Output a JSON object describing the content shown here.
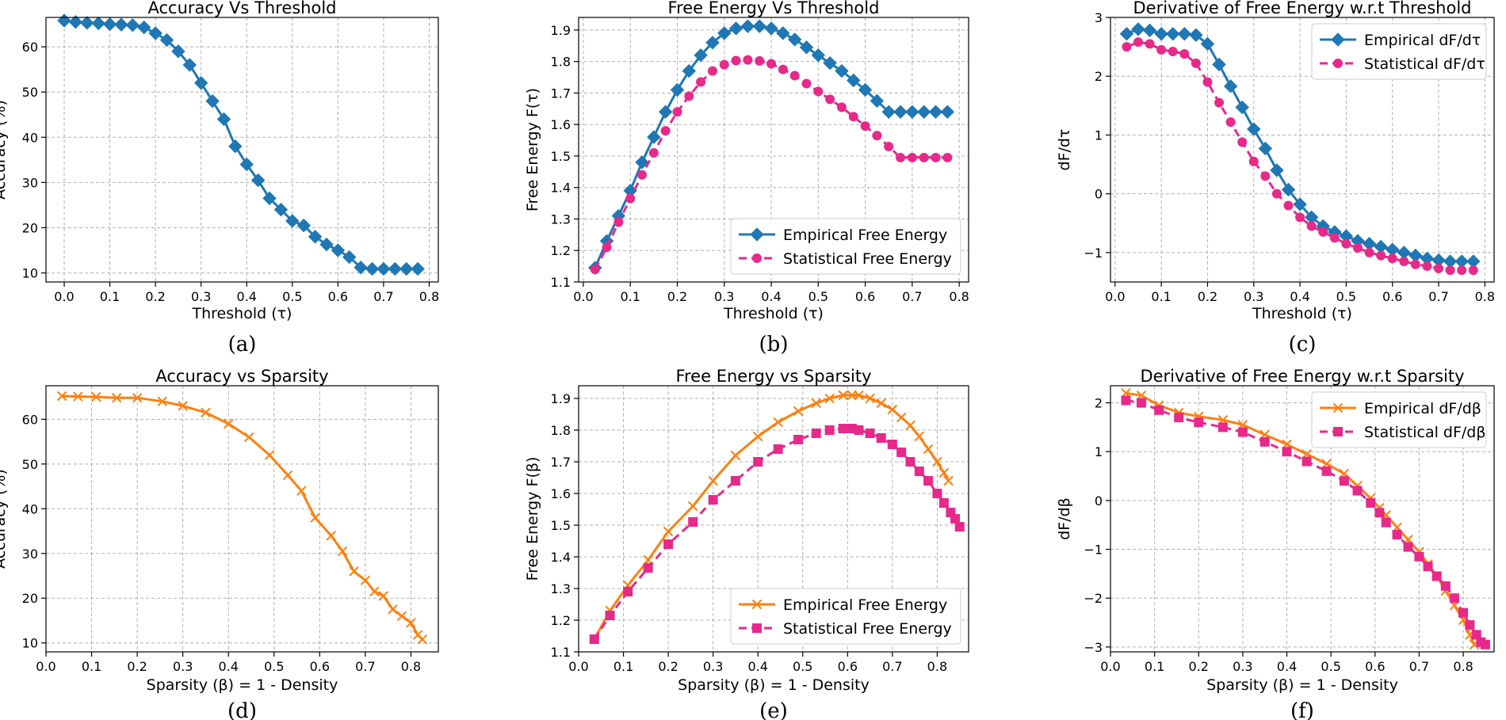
{
  "chart_data": [
    {
      "type": "line",
      "title": "Accuracy Vs Threshold",
      "xlabel": "Threshold (τ)",
      "ylabel": "Accuracy (%)",
      "caption": "(a)",
      "xlim": [
        -0.04,
        0.82
      ],
      "ylim": [
        8,
        66.5
      ],
      "xticks": [
        0.0,
        0.1,
        0.2,
        0.3,
        0.4,
        0.5,
        0.6,
        0.7,
        0.8
      ],
      "xtick_labels": [
        "0.0",
        "0.1",
        "0.2",
        "0.3",
        "0.4",
        "0.5",
        "0.6",
        "0.7",
        "0.8"
      ],
      "yticks": [
        10,
        20,
        30,
        40,
        50,
        60
      ],
      "ytick_labels": [
        "10",
        "20",
        "30",
        "40",
        "50",
        "60"
      ],
      "legend": null,
      "series": [
        {
          "name": "Accuracy",
          "color": "#1f77b4",
          "dash": "solid",
          "marker": "diamond",
          "x": [
            0.0,
            0.025,
            0.05,
            0.075,
            0.1,
            0.125,
            0.15,
            0.175,
            0.2,
            0.225,
            0.25,
            0.275,
            0.3,
            0.325,
            0.35,
            0.375,
            0.4,
            0.425,
            0.45,
            0.475,
            0.5,
            0.525,
            0.55,
            0.575,
            0.6,
            0.625,
            0.65,
            0.675,
            0.7,
            0.725,
            0.75,
            0.775
          ],
          "y": [
            65.8,
            65.5,
            65.3,
            65.2,
            65.0,
            64.9,
            64.8,
            64.3,
            63.0,
            61.5,
            59.0,
            56.0,
            52.0,
            48.0,
            44.0,
            38.0,
            34.0,
            30.5,
            26.5,
            24.0,
            21.5,
            20.5,
            18.0,
            16.3,
            15.0,
            13.5,
            11.2,
            10.9,
            10.9,
            10.9,
            10.9,
            10.9
          ]
        }
      ]
    },
    {
      "type": "line",
      "title": "Free Energy Vs Threshold",
      "xlabel": "Threshold (τ)",
      "ylabel": "Free Energy F(τ)",
      "caption": "(b)",
      "xlim": [
        -0.01,
        0.82
      ],
      "ylim": [
        1.1,
        1.94
      ],
      "xticks": [
        0.0,
        0.1,
        0.2,
        0.3,
        0.4,
        0.5,
        0.6,
        0.7,
        0.8
      ],
      "xtick_labels": [
        "0.0",
        "0.1",
        "0.2",
        "0.3",
        "0.4",
        "0.5",
        "0.6",
        "0.7",
        "0.8"
      ],
      "yticks": [
        1.1,
        1.2,
        1.3,
        1.4,
        1.5,
        1.6,
        1.7,
        1.8,
        1.9
      ],
      "ytick_labels": [
        "1.1",
        "1.2",
        "1.3",
        "1.4",
        "1.5",
        "1.6",
        "1.7",
        "1.8",
        "1.9"
      ],
      "legend": {
        "position": "lower-right"
      },
      "series": [
        {
          "name": "Empirical Free Energy",
          "color": "#1f77b4",
          "dash": "solid",
          "marker": "diamond",
          "x": [
            0.025,
            0.05,
            0.075,
            0.1,
            0.125,
            0.15,
            0.175,
            0.2,
            0.225,
            0.25,
            0.275,
            0.3,
            0.325,
            0.35,
            0.375,
            0.4,
            0.425,
            0.45,
            0.475,
            0.5,
            0.525,
            0.55,
            0.575,
            0.6,
            0.625,
            0.65,
            0.675,
            0.7,
            0.725,
            0.75,
            0.775
          ],
          "y": [
            1.145,
            1.23,
            1.31,
            1.39,
            1.48,
            1.56,
            1.64,
            1.71,
            1.77,
            1.82,
            1.86,
            1.89,
            1.905,
            1.912,
            1.912,
            1.905,
            1.89,
            1.87,
            1.845,
            1.82,
            1.795,
            1.77,
            1.74,
            1.71,
            1.675,
            1.64,
            1.64,
            1.64,
            1.64,
            1.64,
            1.64
          ]
        },
        {
          "name": "Statistical Free Energy",
          "color": "#e7298a",
          "dash": "dashed",
          "marker": "circle",
          "x": [
            0.025,
            0.05,
            0.075,
            0.1,
            0.125,
            0.15,
            0.175,
            0.2,
            0.225,
            0.25,
            0.275,
            0.3,
            0.325,
            0.35,
            0.375,
            0.4,
            0.425,
            0.45,
            0.475,
            0.5,
            0.525,
            0.55,
            0.575,
            0.6,
            0.625,
            0.65,
            0.675,
            0.7,
            0.725,
            0.75,
            0.775
          ],
          "y": [
            1.14,
            1.21,
            1.29,
            1.365,
            1.44,
            1.51,
            1.58,
            1.64,
            1.69,
            1.735,
            1.77,
            1.79,
            1.803,
            1.805,
            1.802,
            1.793,
            1.775,
            1.755,
            1.73,
            1.705,
            1.68,
            1.655,
            1.625,
            1.595,
            1.565,
            1.53,
            1.495,
            1.495,
            1.495,
            1.495,
            1.495
          ]
        }
      ]
    },
    {
      "type": "line",
      "title": "Derivative of Free Energy w.r.t Threshold",
      "xlabel": "Threshold (τ)",
      "ylabel": "dF/dτ",
      "caption": "(c)",
      "xlim": [
        -0.01,
        0.82
      ],
      "ylim": [
        -1.5,
        3.0
      ],
      "xticks": [
        0.0,
        0.1,
        0.2,
        0.3,
        0.4,
        0.5,
        0.6,
        0.7,
        0.8
      ],
      "xtick_labels": [
        "0.0",
        "0.1",
        "0.2",
        "0.3",
        "0.4",
        "0.5",
        "0.6",
        "0.7",
        "0.8"
      ],
      "yticks": [
        -1,
        0,
        1,
        2,
        3
      ],
      "ytick_labels": [
        "−1",
        "0",
        "1",
        "2",
        "3"
      ],
      "legend": {
        "position": "upper-right"
      },
      "series": [
        {
          "name": "Empirical dF/dτ",
          "color": "#1f77b4",
          "dash": "solid",
          "marker": "diamond",
          "x": [
            0.025,
            0.05,
            0.075,
            0.1,
            0.125,
            0.15,
            0.175,
            0.2,
            0.225,
            0.25,
            0.275,
            0.3,
            0.325,
            0.35,
            0.375,
            0.4,
            0.425,
            0.45,
            0.475,
            0.5,
            0.525,
            0.55,
            0.575,
            0.6,
            0.625,
            0.65,
            0.675,
            0.7,
            0.725,
            0.75,
            0.775
          ],
          "y": [
            2.72,
            2.8,
            2.78,
            2.72,
            2.72,
            2.72,
            2.7,
            2.55,
            2.2,
            1.83,
            1.47,
            1.1,
            0.77,
            0.4,
            0.07,
            -0.18,
            -0.4,
            -0.55,
            -0.65,
            -0.72,
            -0.8,
            -0.85,
            -0.9,
            -0.95,
            -1.0,
            -1.05,
            -1.1,
            -1.13,
            -1.15,
            -1.15,
            -1.15
          ]
        },
        {
          "name": "Statistical dF/dτ",
          "color": "#e7298a",
          "dash": "dashed",
          "marker": "circle",
          "x": [
            0.025,
            0.05,
            0.075,
            0.1,
            0.125,
            0.15,
            0.175,
            0.2,
            0.225,
            0.25,
            0.275,
            0.3,
            0.325,
            0.35,
            0.375,
            0.4,
            0.425,
            0.45,
            0.475,
            0.5,
            0.525,
            0.55,
            0.575,
            0.6,
            0.625,
            0.65,
            0.675,
            0.7,
            0.725,
            0.75,
            0.775
          ],
          "y": [
            2.5,
            2.58,
            2.55,
            2.45,
            2.42,
            2.38,
            2.22,
            1.9,
            1.55,
            1.22,
            0.88,
            0.55,
            0.3,
            0.0,
            -0.2,
            -0.4,
            -0.55,
            -0.65,
            -0.75,
            -0.85,
            -0.92,
            -1.0,
            -1.05,
            -1.1,
            -1.15,
            -1.2,
            -1.23,
            -1.27,
            -1.3,
            -1.3,
            -1.3
          ]
        }
      ]
    },
    {
      "type": "line",
      "title": "Accuracy vs Sparsity",
      "xlabel": "Sparsity (β) = 1 - Density",
      "ylabel": "Accuracy (%)",
      "caption": "(d)",
      "xlim": [
        0.0,
        0.86
      ],
      "ylim": [
        8,
        67.5
      ],
      "xticks": [
        0.0,
        0.1,
        0.2,
        0.3,
        0.4,
        0.5,
        0.6,
        0.7,
        0.8
      ],
      "xtick_labels": [
        "0.0",
        "0.1",
        "0.2",
        "0.3",
        "0.4",
        "0.5",
        "0.6",
        "0.7",
        "0.8"
      ],
      "yticks": [
        10,
        20,
        30,
        40,
        50,
        60
      ],
      "ytick_labels": [
        "10",
        "20",
        "30",
        "40",
        "50",
        "60"
      ],
      "legend": null,
      "series": [
        {
          "name": "Accuracy",
          "color": "#ff7f0e",
          "dash": "solid",
          "marker": "x",
          "x": [
            0.035,
            0.07,
            0.11,
            0.155,
            0.2,
            0.255,
            0.3,
            0.35,
            0.4,
            0.445,
            0.49,
            0.53,
            0.56,
            0.59,
            0.625,
            0.65,
            0.675,
            0.7,
            0.72,
            0.74,
            0.76,
            0.78,
            0.8,
            0.815,
            0.825
          ],
          "y": [
            65.2,
            65.1,
            65.0,
            64.8,
            64.8,
            64.0,
            63.0,
            61.5,
            59.0,
            56.0,
            52.0,
            47.5,
            44.0,
            38.0,
            34.0,
            30.5,
            26.0,
            24.0,
            21.5,
            20.5,
            17.5,
            16.0,
            14.5,
            11.8,
            10.8
          ]
        }
      ]
    },
    {
      "type": "line",
      "title": "Free Energy vs Sparsity",
      "xlabel": "Sparsity (β) = 1 - Density",
      "ylabel": "Free Energy F(β)",
      "caption": "(e)",
      "xlim": [
        0.0,
        0.87
      ],
      "ylim": [
        1.1,
        1.94
      ],
      "xticks": [
        0.0,
        0.1,
        0.2,
        0.3,
        0.4,
        0.5,
        0.6,
        0.7,
        0.8
      ],
      "xtick_labels": [
        "0.0",
        "0.1",
        "0.2",
        "0.3",
        "0.4",
        "0.5",
        "0.6",
        "0.7",
        "0.8"
      ],
      "yticks": [
        1.1,
        1.2,
        1.3,
        1.4,
        1.5,
        1.6,
        1.7,
        1.8,
        1.9
      ],
      "ytick_labels": [
        "1.1",
        "1.2",
        "1.3",
        "1.4",
        "1.5",
        "1.6",
        "1.7",
        "1.8",
        "1.9"
      ],
      "legend": {
        "position": "lower-right"
      },
      "series": [
        {
          "name": "Empirical Free Energy",
          "color": "#ff7f0e",
          "dash": "solid",
          "marker": "x",
          "x": [
            0.035,
            0.07,
            0.11,
            0.155,
            0.2,
            0.255,
            0.3,
            0.35,
            0.4,
            0.445,
            0.49,
            0.53,
            0.56,
            0.59,
            0.61,
            0.625,
            0.65,
            0.675,
            0.7,
            0.72,
            0.74,
            0.76,
            0.78,
            0.8,
            0.815,
            0.825
          ],
          "y": [
            1.14,
            1.23,
            1.31,
            1.39,
            1.48,
            1.56,
            1.64,
            1.72,
            1.78,
            1.825,
            1.86,
            1.885,
            1.9,
            1.91,
            1.91,
            1.91,
            1.9,
            1.885,
            1.865,
            1.84,
            1.815,
            1.78,
            1.74,
            1.7,
            1.665,
            1.64
          ]
        },
        {
          "name": "Statistical Free Energy",
          "color": "#e7298a",
          "dash": "dashed",
          "marker": "square",
          "x": [
            0.035,
            0.07,
            0.11,
            0.155,
            0.2,
            0.255,
            0.3,
            0.35,
            0.4,
            0.445,
            0.49,
            0.53,
            0.56,
            0.59,
            0.61,
            0.625,
            0.65,
            0.675,
            0.7,
            0.72,
            0.74,
            0.76,
            0.78,
            0.8,
            0.815,
            0.83,
            0.84,
            0.85
          ],
          "y": [
            1.14,
            1.215,
            1.29,
            1.365,
            1.44,
            1.51,
            1.58,
            1.64,
            1.7,
            1.74,
            1.77,
            1.79,
            1.8,
            1.805,
            1.805,
            1.8,
            1.79,
            1.775,
            1.755,
            1.73,
            1.7,
            1.67,
            1.64,
            1.6,
            1.57,
            1.54,
            1.52,
            1.495
          ]
        }
      ]
    },
    {
      "type": "line",
      "title": "Derivative of Free Energy w.r.t Sparsity",
      "xlabel": "Sparsity (β) = 1 - Density",
      "ylabel": "dF/dβ",
      "caption": "(f)",
      "xlim": [
        0.0,
        0.87
      ],
      "ylim": [
        -3.1,
        2.35
      ],
      "xticks": [
        0.0,
        0.1,
        0.2,
        0.3,
        0.4,
        0.5,
        0.6,
        0.7,
        0.8
      ],
      "xtick_labels": [
        "0.0",
        "0.1",
        "0.2",
        "0.3",
        "0.4",
        "0.5",
        "0.6",
        "0.7",
        "0.8"
      ],
      "yticks": [
        -3,
        -2,
        -1,
        0,
        1,
        2
      ],
      "ytick_labels": [
        "−3",
        "−2",
        "−1",
        "0",
        "1",
        "2"
      ],
      "legend": {
        "position": "upper-right"
      },
      "series": [
        {
          "name": "Empirical dF/dβ",
          "color": "#ff7f0e",
          "dash": "solid",
          "marker": "x",
          "x": [
            0.035,
            0.07,
            0.11,
            0.155,
            0.2,
            0.255,
            0.3,
            0.35,
            0.4,
            0.445,
            0.49,
            0.53,
            0.56,
            0.59,
            0.61,
            0.625,
            0.65,
            0.675,
            0.7,
            0.72,
            0.74,
            0.76,
            0.78,
            0.8,
            0.815,
            0.825
          ],
          "y": [
            2.2,
            2.15,
            1.95,
            1.8,
            1.72,
            1.65,
            1.55,
            1.35,
            1.15,
            0.95,
            0.75,
            0.55,
            0.3,
            0.05,
            -0.15,
            -0.3,
            -0.55,
            -0.8,
            -1.05,
            -1.3,
            -1.55,
            -1.85,
            -2.15,
            -2.45,
            -2.75,
            -2.95
          ]
        },
        {
          "name": "Statistical dF/dβ",
          "color": "#e7298a",
          "dash": "dashed",
          "marker": "square",
          "x": [
            0.035,
            0.07,
            0.11,
            0.155,
            0.2,
            0.255,
            0.3,
            0.35,
            0.4,
            0.445,
            0.49,
            0.53,
            0.56,
            0.59,
            0.61,
            0.625,
            0.65,
            0.675,
            0.7,
            0.72,
            0.74,
            0.76,
            0.78,
            0.8,
            0.815,
            0.83,
            0.84,
            0.85
          ],
          "y": [
            2.05,
            2.0,
            1.85,
            1.7,
            1.6,
            1.5,
            1.4,
            1.2,
            1.0,
            0.8,
            0.6,
            0.4,
            0.2,
            -0.05,
            -0.25,
            -0.45,
            -0.7,
            -0.95,
            -1.15,
            -1.35,
            -1.55,
            -1.75,
            -2.0,
            -2.3,
            -2.55,
            -2.75,
            -2.9,
            -2.95
          ]
        }
      ]
    }
  ]
}
